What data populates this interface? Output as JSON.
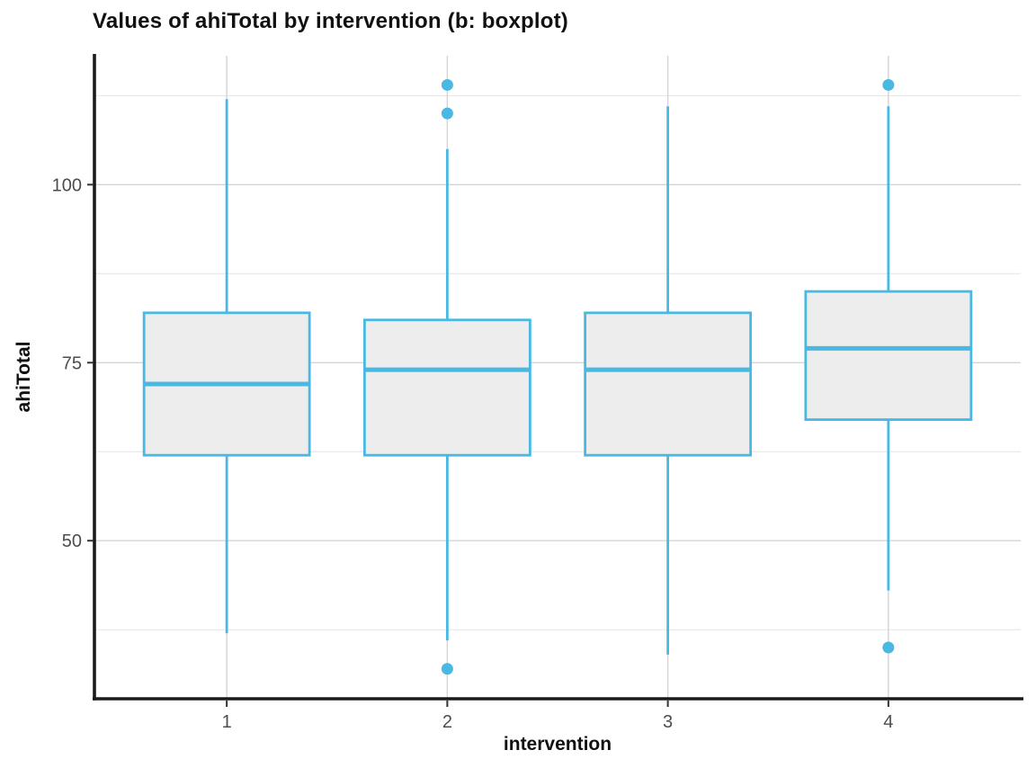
{
  "title": "Values of ahiTotal by intervention (b: boxplot)",
  "x_axis": {
    "label": "intervention",
    "tick_labels": [
      "1",
      "2",
      "3",
      "4"
    ]
  },
  "y_axis": {
    "label": "ahiTotal",
    "tick_labels": [
      "50",
      "75",
      "100"
    ]
  },
  "colors": {
    "box_stroke": "#49B8E2",
    "box_fill": "#EDEDED",
    "outlier_fill": "#49B8E2",
    "grid_major": "#D4D4D4",
    "grid_minor": "#E4E4E4",
    "axis_line": "#1A1A1A",
    "tick_mark": "#333333",
    "tick_label": "#4D4D4D",
    "background": "#FFFFFF"
  },
  "chart_data": {
    "type": "boxplot",
    "title": "Values of ahiTotal by intervention (b: boxplot)",
    "xlabel": "intervention",
    "ylabel": "ahiTotal",
    "categories": [
      "1",
      "2",
      "3",
      "4"
    ],
    "ylim": [
      27.8,
      118.1
    ],
    "y_major_ticks": [
      50,
      75,
      100
    ],
    "y_minor_gridlines": [
      37.5,
      62.5,
      87.5,
      112.5
    ],
    "grid": true,
    "legend": "none",
    "series": [
      {
        "category": "1",
        "whisker_low": 37,
        "q1": 62,
        "median": 72,
        "q3": 82,
        "whisker_high": 112,
        "outliers": []
      },
      {
        "category": "2",
        "whisker_low": 36,
        "q1": 62,
        "median": 74,
        "q3": 81,
        "whisker_high": 105,
        "outliers": [
          114,
          110,
          32
        ]
      },
      {
        "category": "3",
        "whisker_low": 34,
        "q1": 62,
        "median": 74,
        "q3": 82,
        "whisker_high": 111,
        "outliers": []
      },
      {
        "category": "4",
        "whisker_low": 43,
        "q1": 67,
        "median": 77,
        "q3": 85,
        "whisker_high": 111,
        "outliers": [
          114,
          35
        ]
      }
    ]
  }
}
